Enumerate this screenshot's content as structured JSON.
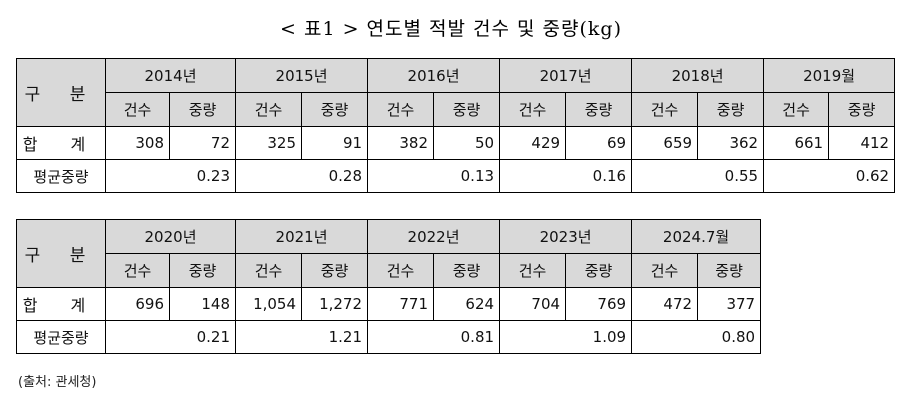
{
  "title": "< 표1 > 연도별 적발 건수 및 중량(kg)",
  "labels": {
    "category": "구 분",
    "total": "합 계",
    "avg_weight": "평균중량",
    "count": "건수",
    "weight": "중량"
  },
  "table1": {
    "years": [
      "2014년",
      "2015년",
      "2016년",
      "2017년",
      "2018년",
      "2019월"
    ],
    "counts": [
      "308",
      "325",
      "382",
      "429",
      "659",
      "661"
    ],
    "weights": [
      "72",
      "91",
      "50",
      "69",
      "362",
      "412"
    ],
    "avg": [
      "0.23",
      "0.28",
      "0.13",
      "0.16",
      "0.55",
      "0.62"
    ]
  },
  "table2": {
    "years": [
      "2020년",
      "2021년",
      "2022년",
      "2023년",
      "2024.7월"
    ],
    "counts": [
      "696",
      "1,054",
      "771",
      "704",
      "472"
    ],
    "weights": [
      "148",
      "1,272",
      "624",
      "769",
      "377"
    ],
    "avg": [
      "0.21",
      "1.21",
      "0.81",
      "1.09",
      "0.80"
    ]
  },
  "source": "(출처: 관세청)"
}
